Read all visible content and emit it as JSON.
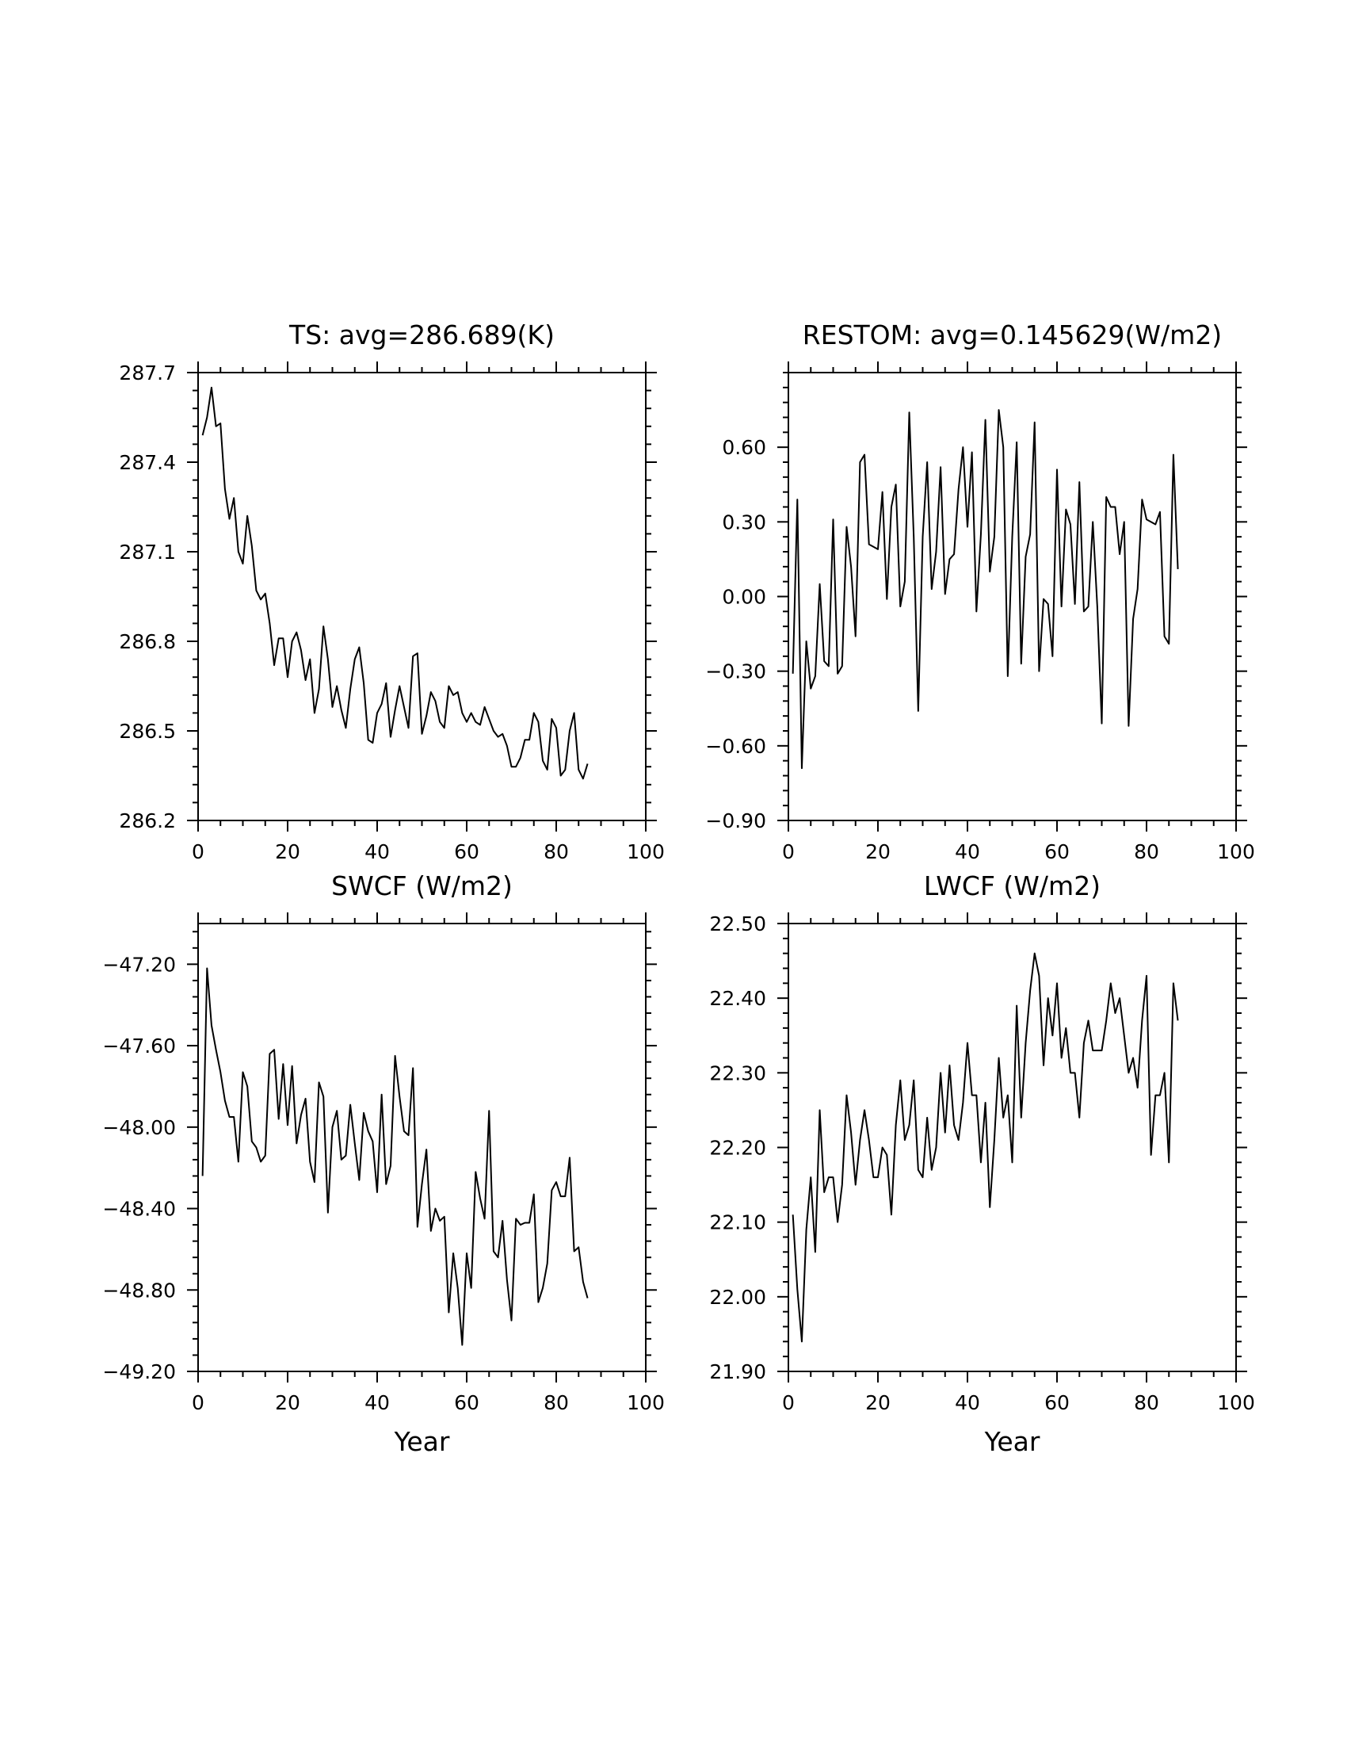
{
  "chart_data": [
    {
      "type": "line",
      "title": "TS: avg=286.689(K)",
      "xlabel": "",
      "ylabel": "",
      "xlim": [
        0,
        100
      ],
      "ylim": [
        286.2,
        287.7
      ],
      "xticks": [
        "0",
        "20",
        "40",
        "60",
        "80",
        "100"
      ],
      "yticks": [
        "286.2",
        "286.5",
        "286.8",
        "287.1",
        "287.4",
        "287.7"
      ],
      "x": [
        1,
        2,
        3,
        4,
        5,
        6,
        7,
        8,
        9,
        10,
        11,
        12,
        13,
        14,
        15,
        16,
        17,
        18,
        19,
        20,
        21,
        22,
        23,
        24,
        25,
        26,
        27,
        28,
        29,
        30,
        31,
        32,
        33,
        34,
        35,
        36,
        37,
        38,
        39,
        40,
        41,
        42,
        43,
        44,
        45,
        46,
        47,
        48,
        49,
        50,
        51,
        52,
        53,
        54,
        55,
        56,
        57,
        58,
        59,
        60,
        61,
        62,
        63,
        64,
        65,
        66,
        67,
        68,
        69,
        70,
        71,
        72,
        73,
        74,
        75,
        76,
        77,
        78,
        79,
        80,
        81,
        82,
        83,
        84,
        85,
        86,
        87
      ],
      "series": [
        {
          "name": "TS",
          "values": [
            287.49,
            287.55,
            287.65,
            287.52,
            287.53,
            287.31,
            287.21,
            287.28,
            287.1,
            287.06,
            287.22,
            287.12,
            286.97,
            286.94,
            286.96,
            286.86,
            286.72,
            286.81,
            286.81,
            286.68,
            286.8,
            286.83,
            286.77,
            286.67,
            286.74,
            286.56,
            286.64,
            286.85,
            286.74,
            286.58,
            286.65,
            286.57,
            286.51,
            286.64,
            286.74,
            286.78,
            286.66,
            286.47,
            286.46,
            286.56,
            286.59,
            286.66,
            286.48,
            286.57,
            286.65,
            286.58,
            286.51,
            286.75,
            286.76,
            286.49,
            286.55,
            286.63,
            286.6,
            286.53,
            286.51,
            286.65,
            286.62,
            286.63,
            286.56,
            286.53,
            286.56,
            286.53,
            286.52,
            286.58,
            286.54,
            286.5,
            286.48,
            286.49,
            286.45,
            286.38,
            286.38,
            286.41,
            286.47,
            286.47,
            286.56,
            286.53,
            286.4,
            286.37,
            286.54,
            286.51,
            286.35,
            286.37,
            286.5,
            286.56,
            286.37,
            286.34,
            286.39
          ]
        }
      ]
    },
    {
      "type": "line",
      "title": "RESTOM: avg=0.145629(W/m2)",
      "xlabel": "",
      "ylabel": "",
      "xlim": [
        0,
        100
      ],
      "ylim": [
        -0.9,
        0.9
      ],
      "xticks": [
        "0",
        "20",
        "40",
        "60",
        "80",
        "100"
      ],
      "yticks": [
        "−0.90",
        "−0.60",
        "−0.30",
        "0.00",
        "0.30",
        "0.60"
      ],
      "x": [
        1,
        2,
        3,
        4,
        5,
        6,
        7,
        8,
        9,
        10,
        11,
        12,
        13,
        14,
        15,
        16,
        17,
        18,
        19,
        20,
        21,
        22,
        23,
        24,
        25,
        26,
        27,
        28,
        29,
        30,
        31,
        32,
        33,
        34,
        35,
        36,
        37,
        38,
        39,
        40,
        41,
        42,
        43,
        44,
        45,
        46,
        47,
        48,
        49,
        50,
        51,
        52,
        53,
        54,
        55,
        56,
        57,
        58,
        59,
        60,
        61,
        62,
        63,
        64,
        65,
        66,
        67,
        68,
        69,
        70,
        71,
        72,
        73,
        74,
        75,
        76,
        77,
        78,
        79,
        80,
        81,
        82,
        83,
        84,
        85,
        86,
        87
      ],
      "series": [
        {
          "name": "RESTOM",
          "values": [
            -0.31,
            0.39,
            -0.69,
            -0.18,
            -0.37,
            -0.32,
            0.05,
            -0.26,
            -0.28,
            0.31,
            -0.31,
            -0.28,
            0.28,
            0.12,
            -0.16,
            0.54,
            0.57,
            0.21,
            0.2,
            0.19,
            0.42,
            -0.01,
            0.36,
            0.45,
            -0.04,
            0.06,
            0.74,
            0.24,
            -0.46,
            0.24,
            0.54,
            0.03,
            0.18,
            0.52,
            0.01,
            0.15,
            0.17,
            0.43,
            0.6,
            0.28,
            0.58,
            -0.06,
            0.25,
            0.71,
            0.1,
            0.24,
            0.75,
            0.6,
            -0.32,
            0.24,
            0.62,
            -0.27,
            0.16,
            0.25,
            0.7,
            -0.3,
            -0.01,
            -0.03,
            -0.24,
            0.51,
            -0.04,
            0.35,
            0.29,
            -0.03,
            0.46,
            -0.06,
            -0.04,
            0.3,
            -0.04,
            -0.51,
            0.4,
            0.36,
            0.36,
            0.17,
            0.3,
            -0.52,
            -0.09,
            0.03,
            0.39,
            0.31,
            0.3,
            0.29,
            0.34,
            -0.16,
            -0.19,
            0.57,
            0.11
          ]
        }
      ]
    },
    {
      "type": "line",
      "title": "SWCF (W/m2)",
      "xlabel": "Year",
      "ylabel": "",
      "xlim": [
        0,
        100
      ],
      "ylim": [
        -49.2,
        -47.0
      ],
      "xticks": [
        "0",
        "20",
        "40",
        "60",
        "80",
        "100"
      ],
      "yticks": [
        "−49.20",
        "−48.80",
        "−48.40",
        "−48.00",
        "−47.60",
        "−47.20"
      ],
      "x": [
        1,
        2,
        3,
        4,
        5,
        6,
        7,
        8,
        9,
        10,
        11,
        12,
        13,
        14,
        15,
        16,
        17,
        18,
        19,
        20,
        21,
        22,
        23,
        24,
        25,
        26,
        27,
        28,
        29,
        30,
        31,
        32,
        33,
        34,
        35,
        36,
        37,
        38,
        39,
        40,
        41,
        42,
        43,
        44,
        45,
        46,
        47,
        48,
        49,
        50,
        51,
        52,
        53,
        54,
        55,
        56,
        57,
        58,
        59,
        60,
        61,
        62,
        63,
        64,
        65,
        66,
        67,
        68,
        69,
        70,
        71,
        72,
        73,
        74,
        75,
        76,
        77,
        78,
        79,
        80,
        81,
        82,
        83,
        84,
        85,
        86,
        87
      ],
      "series": [
        {
          "name": "SWCF",
          "values": [
            -48.24,
            -47.22,
            -47.5,
            -47.62,
            -47.73,
            -47.87,
            -47.95,
            -47.95,
            -48.17,
            -47.73,
            -47.8,
            -48.07,
            -48.1,
            -48.17,
            -48.14,
            -47.64,
            -47.62,
            -47.96,
            -47.69,
            -47.99,
            -47.7,
            -48.08,
            -47.94,
            -47.86,
            -48.17,
            -48.27,
            -47.78,
            -47.85,
            -48.42,
            -48.0,
            -47.92,
            -48.16,
            -48.14,
            -47.89,
            -48.08,
            -48.26,
            -47.93,
            -48.02,
            -48.07,
            -48.32,
            -47.84,
            -48.28,
            -48.19,
            -47.65,
            -47.85,
            -48.02,
            -48.04,
            -47.71,
            -48.49,
            -48.28,
            -48.11,
            -48.51,
            -48.4,
            -48.46,
            -48.44,
            -48.91,
            -48.62,
            -48.79,
            -49.07,
            -48.62,
            -48.79,
            -48.22,
            -48.35,
            -48.45,
            -47.92,
            -48.61,
            -48.64,
            -48.46,
            -48.75,
            -48.95,
            -48.45,
            -48.48,
            -48.47,
            -48.47,
            -48.33,
            -48.86,
            -48.79,
            -48.67,
            -48.31,
            -48.27,
            -48.34,
            -48.34,
            -48.15,
            -48.61,
            -48.59,
            -48.76,
            -48.84
          ]
        }
      ]
    },
    {
      "type": "line",
      "title": "LWCF (W/m2)",
      "xlabel": "Year",
      "ylabel": "",
      "xlim": [
        0,
        100
      ],
      "ylim": [
        21.9,
        22.5
      ],
      "xticks": [
        "0",
        "20",
        "40",
        "60",
        "80",
        "100"
      ],
      "yticks": [
        "21.90",
        "22.00",
        "22.10",
        "22.20",
        "22.30",
        "22.40",
        "22.50"
      ],
      "x": [
        1,
        2,
        3,
        4,
        5,
        6,
        7,
        8,
        9,
        10,
        11,
        12,
        13,
        14,
        15,
        16,
        17,
        18,
        19,
        20,
        21,
        22,
        23,
        24,
        25,
        26,
        27,
        28,
        29,
        30,
        31,
        32,
        33,
        34,
        35,
        36,
        37,
        38,
        39,
        40,
        41,
        42,
        43,
        44,
        45,
        46,
        47,
        48,
        49,
        50,
        51,
        52,
        53,
        54,
        55,
        56,
        57,
        58,
        59,
        60,
        61,
        62,
        63,
        64,
        65,
        66,
        67,
        68,
        69,
        70,
        71,
        72,
        73,
        74,
        75,
        76,
        77,
        78,
        79,
        80,
        81,
        82,
        83,
        84,
        85,
        86,
        87
      ],
      "series": [
        {
          "name": "LWCF",
          "values": [
            22.11,
            22.01,
            21.94,
            22.09,
            22.16,
            22.06,
            22.25,
            22.14,
            22.16,
            22.16,
            22.1,
            22.15,
            22.27,
            22.22,
            22.15,
            22.21,
            22.25,
            22.21,
            22.16,
            22.16,
            22.2,
            22.19,
            22.11,
            22.23,
            22.29,
            22.21,
            22.23,
            22.29,
            22.17,
            22.16,
            22.24,
            22.17,
            22.2,
            22.3,
            22.22,
            22.31,
            22.23,
            22.21,
            22.26,
            22.34,
            22.27,
            22.27,
            22.18,
            22.26,
            22.12,
            22.21,
            22.32,
            22.24,
            22.27,
            22.18,
            22.39,
            22.24,
            22.34,
            22.41,
            22.46,
            22.43,
            22.31,
            22.4,
            22.35,
            22.42,
            22.32,
            22.36,
            22.3,
            22.3,
            22.24,
            22.34,
            22.37,
            22.33,
            22.33,
            22.33,
            22.37,
            22.42,
            22.38,
            22.4,
            22.35,
            22.3,
            22.32,
            22.28,
            22.37,
            22.43,
            22.19,
            22.27,
            22.27,
            22.3,
            22.18,
            22.42,
            22.37
          ]
        }
      ]
    }
  ]
}
